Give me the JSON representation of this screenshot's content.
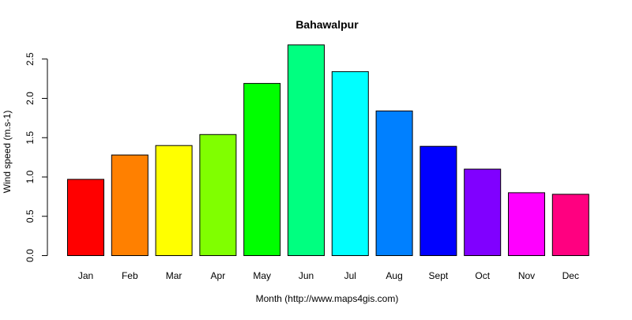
{
  "chart_data": {
    "type": "bar",
    "title": "Bahawalpur",
    "xlabel": "Month (http://www.maps4gis.com)",
    "ylabel": "Wind speed (m.s-1)",
    "categories": [
      "Jan",
      "Feb",
      "Mar",
      "Apr",
      "May",
      "Jun",
      "Jul",
      "Aug",
      "Sept",
      "Oct",
      "Nov",
      "Dec"
    ],
    "values": [
      0.97,
      1.28,
      1.4,
      1.54,
      2.19,
      2.68,
      2.34,
      1.84,
      1.39,
      1.1,
      0.8,
      0.78
    ],
    "colors": [
      "#FF0000",
      "#FF8000",
      "#FFFF00",
      "#80FF00",
      "#00FF00",
      "#00FF80",
      "#00FFFF",
      "#0080FF",
      "#0000FF",
      "#8000FF",
      "#FF00FF",
      "#FF0080"
    ],
    "yticks": [
      "0.0",
      "0.5",
      "1.0",
      "1.5",
      "2.0",
      "2.5"
    ],
    "ylim": [
      0,
      2.75
    ],
    "grid": false,
    "legend": "none"
  }
}
